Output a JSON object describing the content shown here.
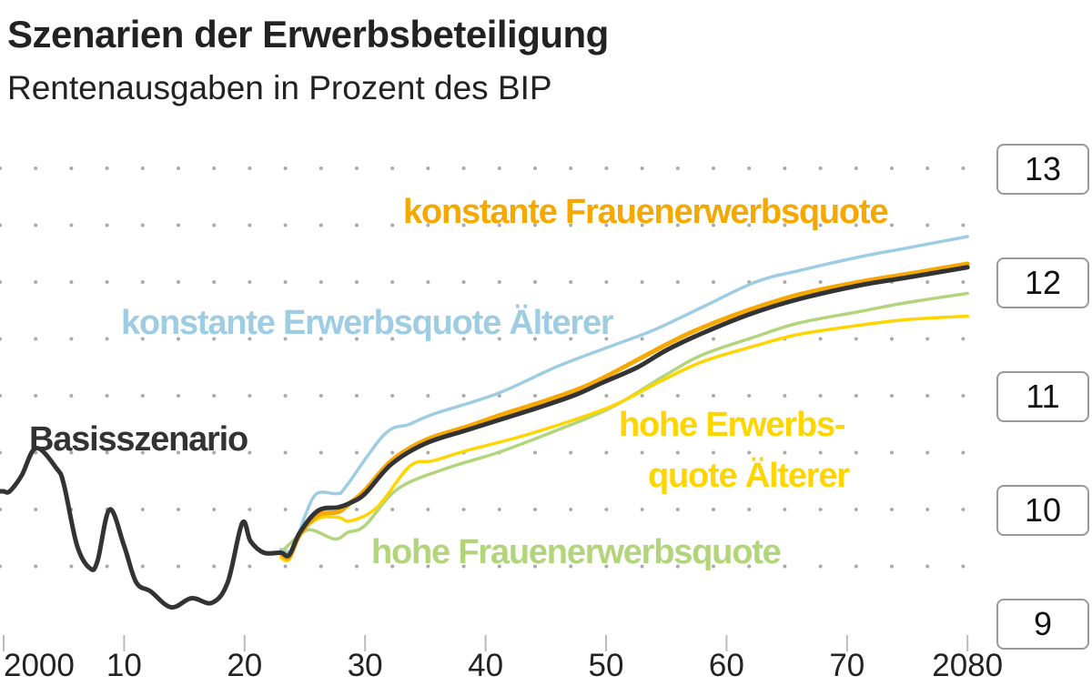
{
  "title": "Szenarien der Erwerbsbeteiligung",
  "subtitle": "Rentenausgaben in Prozent des BIP",
  "chart_data": {
    "type": "line",
    "title": "Szenarien der Erwerbsbeteiligung",
    "subtitle": "Rentenausgaben in Prozent des BIP",
    "xlim": [
      1999.7,
      2080
    ],
    "ylim": [
      9,
      13
    ],
    "x_ticks": [
      2000,
      2010,
      2020,
      2030,
      2040,
      2050,
      2060,
      2070,
      2080
    ],
    "x_tick_labels": [
      "2000",
      "10",
      "20",
      "30",
      "40",
      "50",
      "60",
      "70",
      "2080"
    ],
    "y_ticks": [
      13,
      12,
      11,
      10,
      9
    ],
    "y_tick_labels": [
      "13",
      "12",
      "11",
      "10",
      "9"
    ],
    "y_axis_side": "right",
    "grid": "dotted",
    "series": [
      {
        "name": "konstante Erwerbsquote Älterer",
        "color": "#9ecde3",
        "x": [
          2023,
          2024,
          2025,
          2026,
          2027.7,
          2028.4,
          2031.6,
          2033.7,
          2035.7,
          2041,
          2046,
          2050.5,
          2054,
          2058,
          2062.4,
          2066,
          2071,
          2075,
          2080
        ],
        "y": [
          9.65,
          9.65,
          9.94,
          10.14,
          10.14,
          10.2,
          10.66,
          10.75,
          10.84,
          11.02,
          11.26,
          11.44,
          11.58,
          11.78,
          12.0,
          12.1,
          12.22,
          12.3,
          12.4
        ]
      },
      {
        "name": "hohe Frauenerwerbsquote",
        "color": "#b2d47a",
        "x": [
          2023,
          2024.6,
          2025.6,
          2027.5,
          2028.6,
          2030,
          2032.7,
          2036.7,
          2041,
          2046,
          2050.5,
          2054.9,
          2058,
          2062.4,
          2066,
          2071,
          2075,
          2080
        ],
        "y": [
          9.62,
          9.78,
          9.82,
          9.74,
          9.8,
          9.86,
          10.18,
          10.36,
          10.5,
          10.7,
          10.9,
          11.18,
          11.36,
          11.52,
          11.64,
          11.74,
          11.82,
          11.9
        ]
      },
      {
        "name": "hohe Erwerbsquote Älterer",
        "color": "#ffd500",
        "x": [
          2023,
          2023.7,
          2024.6,
          2026.1,
          2027.8,
          2028.8,
          2031,
          2033.7,
          2035.7,
          2038.5,
          2043.5,
          2049.8,
          2052.6,
          2054,
          2058,
          2062.4,
          2066,
          2071,
          2075,
          2080
        ],
        "y": [
          9.58,
          9.56,
          9.78,
          9.92,
          9.93,
          9.9,
          10.02,
          10.38,
          10.43,
          10.52,
          10.66,
          10.88,
          11.02,
          11.1,
          11.3,
          11.44,
          11.54,
          11.62,
          11.67,
          11.7
        ]
      },
      {
        "name": "konstante Frauenerwerbsquote",
        "color": "#f5a800",
        "x": [
          2023,
          2023.7,
          2024.6,
          2026.1,
          2027.8,
          2028.8,
          2030,
          2032.2,
          2035,
          2038.5,
          2041.5,
          2044.5,
          2047.5,
          2050,
          2055,
          2058,
          2062,
          2066,
          2071,
          2075,
          2080
        ],
        "y": [
          9.62,
          9.58,
          9.78,
          9.95,
          9.98,
          10.06,
          10.17,
          10.43,
          10.61,
          10.73,
          10.84,
          10.94,
          11.05,
          11.17,
          11.45,
          11.6,
          11.76,
          11.89,
          12.0,
          12.07,
          12.16
        ]
      },
      {
        "name": "Basisszenario",
        "color": "#333333",
        "x": [
          2000,
          2000.5,
          2001.5,
          2002.7,
          2004.4,
          2005,
          2006.1,
          2007.2,
          2007.8,
          2008.8,
          2010,
          2011,
          2012.2,
          2013.9,
          2015.6,
          2017.3,
          2018.6,
          2019.8,
          2020.5,
          2021.6,
          2023,
          2023.7,
          2024.6,
          2026.1,
          2027.8,
          2028.8,
          2030,
          2032.2,
          2035,
          2038.5,
          2041.5,
          2044.5,
          2047.5,
          2049.8,
          2052.6,
          2055,
          2058,
          2062,
          2066,
          2071,
          2075,
          2080
        ],
        "y": [
          10.16,
          10.16,
          10.3,
          10.54,
          10.36,
          10.22,
          9.68,
          9.48,
          9.55,
          10.0,
          9.68,
          9.36,
          9.28,
          9.14,
          9.22,
          9.18,
          9.36,
          9.88,
          9.72,
          9.62,
          9.62,
          9.6,
          9.8,
          9.99,
          10.02,
          10.06,
          10.14,
          10.4,
          10.58,
          10.7,
          10.8,
          10.9,
          11.01,
          11.12,
          11.25,
          11.4,
          11.55,
          11.72,
          11.85,
          11.97,
          12.04,
          12.13
        ]
      }
    ]
  },
  "labels": {
    "orange": "konstante Frauenerwerbsquote",
    "blue": "konstante Erwerbsquote Älterer",
    "basis": "Basisszenario",
    "yellow_line1": "hohe Erwerbs-",
    "yellow_line2": "quote Älterer",
    "green": "hohe Frauenerwerbsquote"
  }
}
